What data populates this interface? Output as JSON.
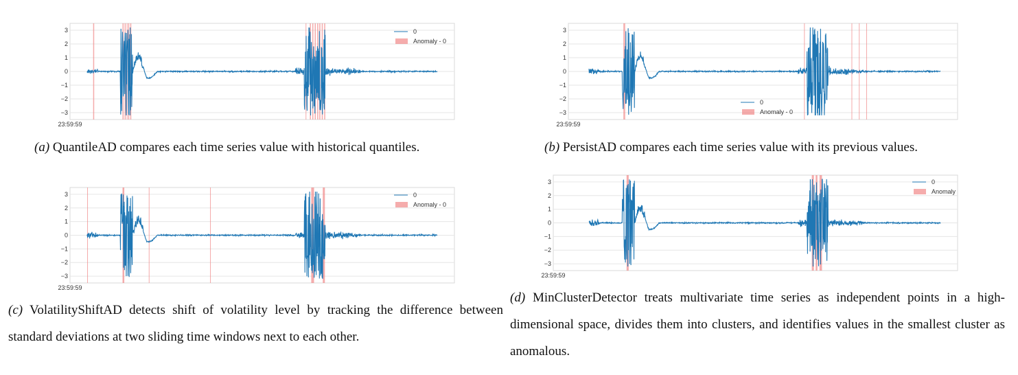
{
  "colors": {
    "series": "#1f77b4",
    "anomaly": "#f08080",
    "grid": "#e6e6e6",
    "frame": "#d9d9d9"
  },
  "figures": [
    {
      "id": "a",
      "caption_label": "(a)",
      "caption_text": "QuantileAD compares each time series value with historical quantiles.",
      "legend_position": "top-right",
      "legend_series": "0",
      "legend_anomaly": "Anomaly - 0",
      "chart_data": {
        "type": "line",
        "yticks": [
          3,
          2,
          1,
          0,
          -1,
          -2,
          -3
        ],
        "ytick_labels": [
          "3",
          "2",
          "1",
          "0",
          "−1",
          "−2",
          "−3"
        ],
        "xtick_label": "23:59:59",
        "ylim": [
          -3.5,
          3.5
        ],
        "grid": true,
        "series": [
          {
            "name": "0"
          }
        ],
        "anomaly_name": "Anomaly - 0",
        "anomaly_regions": [
          [
            0.017,
            0.02
          ],
          [
            0.101,
            0.104
          ],
          [
            0.107,
            0.11
          ],
          [
            0.113,
            0.115
          ],
          [
            0.117,
            0.12
          ],
          [
            0.123,
            0.126
          ],
          [
            0.624,
            0.626
          ],
          [
            0.636,
            0.639
          ],
          [
            0.643,
            0.646
          ],
          [
            0.65,
            0.653
          ],
          [
            0.657,
            0.66
          ],
          [
            0.663,
            0.666
          ],
          [
            0.67,
            0.673
          ],
          [
            0.677,
            0.68
          ]
        ]
      }
    },
    {
      "id": "b",
      "caption_label": "(b)",
      "caption_text": "PersistAD compares each time series value with its previous values.",
      "legend_position": "bottom-center",
      "legend_series": "0",
      "legend_anomaly": "Anomaly - 0",
      "chart_data": {
        "type": "line",
        "yticks": [
          3,
          2,
          1,
          0,
          -1,
          -2,
          -3
        ],
        "ytick_labels": [
          "3",
          "2",
          "1",
          "0",
          "−1",
          "−2",
          "−3"
        ],
        "xtick_label": "23:59:59",
        "ylim": [
          -3.5,
          3.5
        ],
        "grid": true,
        "series": [
          {
            "name": "0"
          }
        ],
        "anomaly_name": "Anomaly - 0",
        "anomaly_regions": [
          [
            0.098,
            0.101
          ],
          [
            0.101,
            0.103
          ],
          [
            0.612,
            0.614
          ],
          [
            0.747,
            0.749
          ],
          [
            0.768,
            0.77
          ],
          [
            0.789,
            0.791
          ]
        ]
      }
    },
    {
      "id": "c",
      "caption_label": "(c)",
      "caption_text": "VolatilityShiftAD detects shift of volatility level by tracking the difference between standard deviations at two sliding time windows next to each other.",
      "legend_position": "top-right",
      "legend_series": "0",
      "legend_anomaly": "Anomaly - 0",
      "chart_data": {
        "type": "line",
        "yticks": [
          3,
          2,
          1,
          0,
          -1,
          -2,
          -3
        ],
        "ytick_labels": [
          "3",
          "2",
          "1",
          "0",
          "−1",
          "−2",
          "−3"
        ],
        "xtick_label": "23:59:59",
        "ylim": [
          -3.5,
          3.5
        ],
        "grid": true,
        "series": [
          {
            "name": "0"
          }
        ],
        "anomaly_regions": [
          [
            0.0,
            0.002
          ],
          [
            0.101,
            0.106
          ],
          [
            0.176,
            0.178
          ],
          [
            0.351,
            0.353
          ],
          [
            0.64,
            0.648
          ],
          [
            0.673,
            0.679
          ]
        ]
      }
    },
    {
      "id": "d",
      "caption_label": "(d)",
      "caption_text": "MinClusterDetector treats multivariate time series as independent points in a high-dimensional space, divides them into clusters, and identifies values in the smallest cluster as anomalous.",
      "legend_position": "top-right",
      "legend_series": "0",
      "legend_anomaly": "Anomaly",
      "chart_data": {
        "type": "line",
        "yticks": [
          3,
          2,
          1,
          0,
          -1,
          -2,
          -3
        ],
        "ytick_labels": [
          "3",
          "2",
          "1",
          "0",
          "−1",
          "−2",
          "−3"
        ],
        "xtick_label": "23:59:59",
        "ylim": [
          -3.5,
          3.5
        ],
        "grid": true,
        "series": [
          {
            "name": "0"
          }
        ],
        "anomaly_regions": [
          [
            0.107,
            0.113
          ],
          [
            0.634,
            0.64
          ],
          [
            0.645,
            0.65
          ],
          [
            0.656,
            0.663
          ]
        ]
      }
    }
  ]
}
